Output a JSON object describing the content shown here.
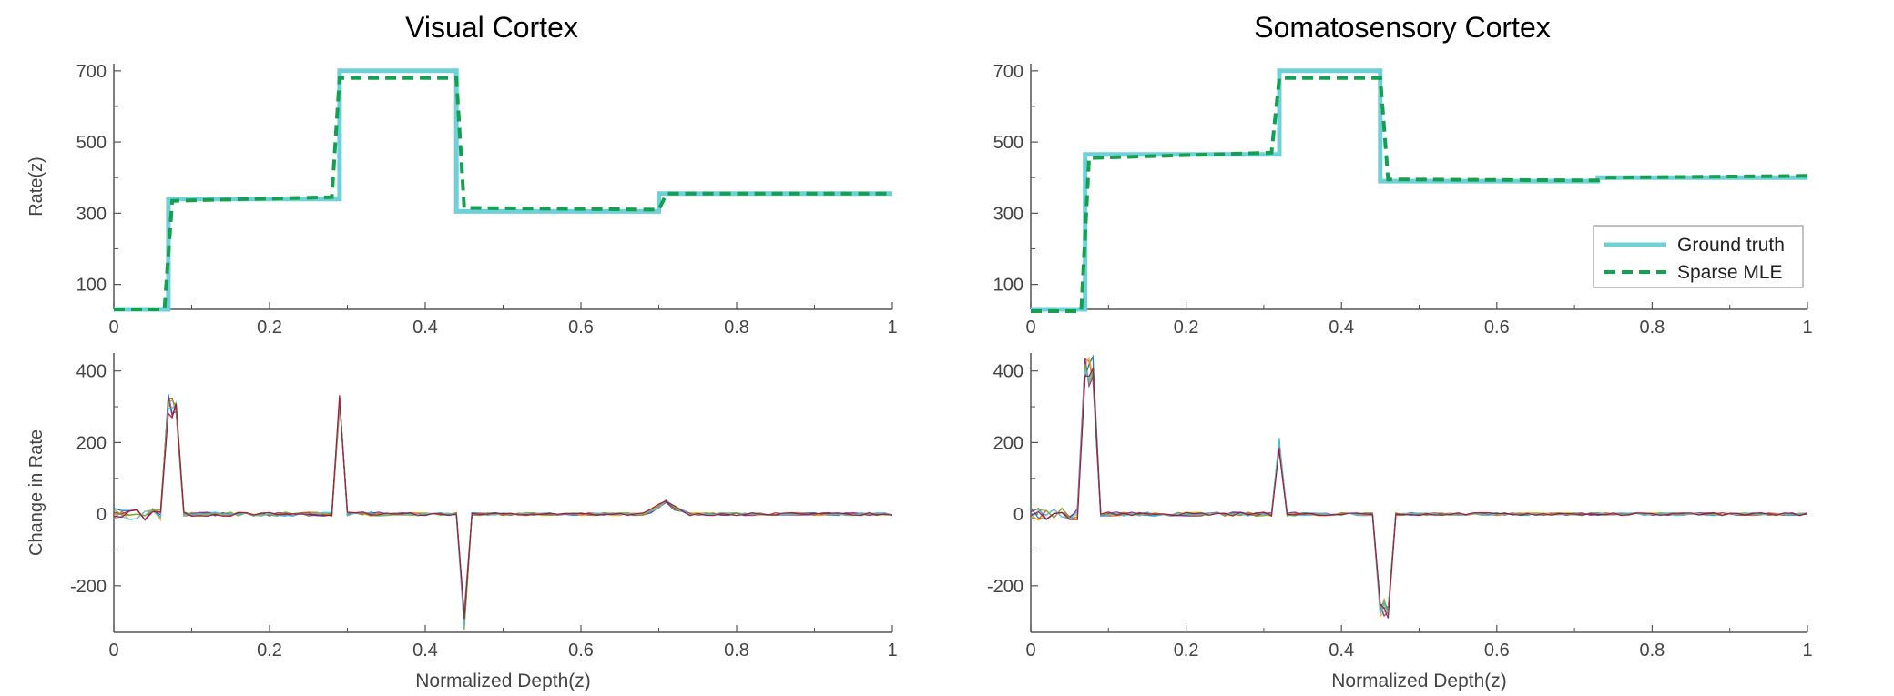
{
  "figure": {
    "left_title": "Visual Cortex",
    "right_title": "Somatosensory Cortex",
    "top_ylabel": "Rate(z)",
    "bottom_ylabel": "Change in Rate",
    "xlabel": "Normalized Depth(z)",
    "legend": {
      "ground_truth": "Ground truth",
      "sparse_mle": "Sparse MLE"
    }
  },
  "colors": {
    "ground_truth": "#6fd0d8",
    "sparse_mle": "#14a050",
    "axis": "#555555",
    "series_palette": [
      "#0072bd",
      "#d95319",
      "#edb120",
      "#7e2f8e",
      "#77ac30",
      "#4dbeee",
      "#a2142f"
    ]
  },
  "chart_data": [
    {
      "type": "line",
      "title": "Visual Cortex",
      "xlabel": "",
      "ylabel": "Rate(z)",
      "xlim": [
        0,
        1
      ],
      "ylim": [
        30,
        720
      ],
      "xticks": [
        0,
        0.2,
        0.4,
        0.6,
        0.8,
        1
      ],
      "yticks": [
        100,
        300,
        500,
        700
      ],
      "series": [
        {
          "name": "Ground truth",
          "x": [
            0,
            0.07,
            0.07,
            0.29,
            0.29,
            0.44,
            0.44,
            0.7,
            0.7,
            1.0
          ],
          "y": [
            30,
            30,
            340,
            340,
            700,
            700,
            305,
            305,
            355,
            355
          ]
        },
        {
          "name": "Sparse MLE",
          "x": [
            0,
            0.065,
            0.075,
            0.28,
            0.29,
            0.44,
            0.45,
            0.7,
            0.71,
            1.0
          ],
          "y": [
            30,
            30,
            335,
            345,
            680,
            680,
            315,
            310,
            355,
            355
          ]
        }
      ]
    },
    {
      "type": "line",
      "title": "Somatosensory Cortex",
      "xlabel": "",
      "ylabel": "",
      "xlim": [
        0,
        1
      ],
      "ylim": [
        30,
        720
      ],
      "xticks": [
        0,
        0.2,
        0.4,
        0.6,
        0.8,
        1
      ],
      "yticks": [
        100,
        300,
        500,
        700
      ],
      "legend_position": "right",
      "series": [
        {
          "name": "Ground truth",
          "x": [
            0,
            0.07,
            0.07,
            0.32,
            0.32,
            0.45,
            0.45,
            0.73,
            0.73,
            1.0
          ],
          "y": [
            30,
            30,
            465,
            465,
            700,
            700,
            390,
            390,
            400,
            400
          ]
        },
        {
          "name": "Sparse MLE",
          "x": [
            0,
            0.065,
            0.075,
            0.31,
            0.32,
            0.45,
            0.46,
            0.73,
            0.74,
            1.0
          ],
          "y": [
            25,
            25,
            455,
            470,
            680,
            680,
            395,
            392,
            400,
            405
          ]
        }
      ]
    },
    {
      "type": "line",
      "title": "",
      "xlabel": "Normalized Depth(z)",
      "ylabel": "Change in Rate",
      "xlim": [
        0,
        1
      ],
      "ylim": [
        -330,
        450
      ],
      "xticks": [
        0,
        0.2,
        0.4,
        0.6,
        0.8,
        1
      ],
      "yticks": [
        -200,
        0,
        200,
        400
      ],
      "spikes": [
        {
          "x": 0.075,
          "peak": 335
        },
        {
          "x": 0.29,
          "peak": 335
        },
        {
          "x": 0.45,
          "peak": -325
        },
        {
          "x": 0.71,
          "peak": 40
        }
      ],
      "series_count": 7
    },
    {
      "type": "line",
      "title": "",
      "xlabel": "Normalized Depth(z)",
      "ylabel": "",
      "xlim": [
        0,
        1
      ],
      "ylim": [
        -330,
        450
      ],
      "xticks": [
        0,
        0.2,
        0.4,
        0.6,
        0.8,
        1
      ],
      "yticks": [
        -200,
        0,
        200,
        400
      ],
      "spikes": [
        {
          "x": 0.075,
          "peak": 440
        },
        {
          "x": 0.32,
          "peak": 215
        },
        {
          "x": 0.455,
          "peak": -290
        }
      ],
      "series_count": 7
    }
  ]
}
